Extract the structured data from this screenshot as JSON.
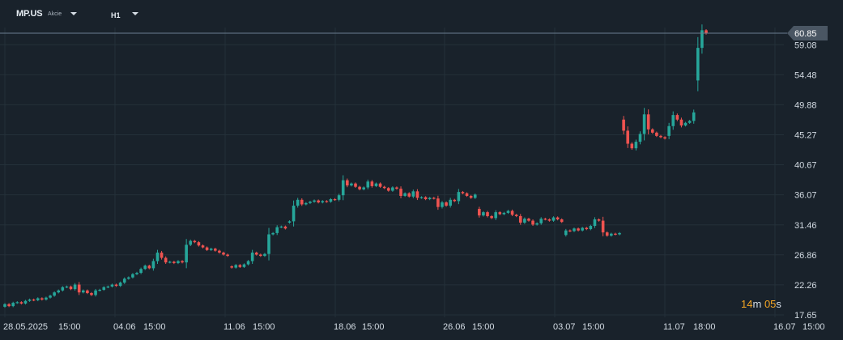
{
  "header": {
    "symbol": "MP.US",
    "instrument_type": "Akcie",
    "timeframe": "H1"
  },
  "countdown": {
    "minutes": "14",
    "minutes_unit": "m",
    "seconds": "05",
    "seconds_unit": "s"
  },
  "colors": {
    "up": "#26a69a",
    "down": "#ef5350",
    "bg": "#19222b",
    "grid": "#243039",
    "text": "#d5dde5",
    "price_line": "#6b7f90",
    "price_tag": "#4a5663",
    "countdown": "#f5a623"
  },
  "chart_data": {
    "type": "candlestick",
    "symbol": "MP.US",
    "timeframe": "H1",
    "y_ticks": [
      17.65,
      22.26,
      26.86,
      31.46,
      36.07,
      40.67,
      45.27,
      49.88,
      54.48,
      59.08
    ],
    "y_tick_labels": [
      "17.65",
      "22.26",
      "26.86",
      "31.46",
      "36.07",
      "40.67",
      "45.27",
      "49.88",
      "54.48",
      "59.08"
    ],
    "ylim": [
      16.9,
      63.1
    ],
    "last_price": 60.85,
    "last_price_label": "60.85",
    "x_labels": [
      "28.05.2025",
      "15:00",
      "04.06",
      "15:00",
      "11.06",
      "15:00",
      "18.06",
      "15:00",
      "26.06",
      "15:00",
      "03.07",
      "15:00",
      "11.07",
      "18:00",
      "16.07",
      "15:00"
    ],
    "candles": [
      [
        18.9,
        19.3
      ],
      [
        19.3,
        19.0
      ],
      [
        19.0,
        19.5
      ],
      [
        19.5,
        19.6
      ],
      [
        19.6,
        19.4
      ],
      [
        19.4,
        19.8
      ],
      [
        19.8,
        20.0
      ],
      [
        20.0,
        19.9
      ],
      [
        19.9,
        20.2
      ],
      [
        20.2,
        20.0
      ],
      [
        20.0,
        20.3
      ],
      [
        20.3,
        20.6
      ],
      [
        20.6,
        21.1
      ],
      [
        21.1,
        21.4
      ],
      [
        21.4,
        21.9
      ],
      [
        21.9,
        22.0
      ],
      [
        22.0,
        21.6
      ],
      [
        21.6,
        22.3
      ],
      [
        22.3,
        21.1
      ],
      [
        21.1,
        21.4
      ],
      [
        21.4,
        21.0
      ],
      [
        21.0,
        20.7
      ],
      [
        20.7,
        21.4
      ],
      [
        21.4,
        21.5
      ],
      [
        21.5,
        21.9
      ],
      [
        21.9,
        22.0
      ],
      [
        22.0,
        22.3
      ],
      [
        22.3,
        22.1
      ],
      [
        22.1,
        22.6
      ],
      [
        22.6,
        23.2
      ],
      [
        23.2,
        23.4
      ],
      [
        23.4,
        23.9
      ],
      [
        23.9,
        24.1
      ],
      [
        24.1,
        24.7
      ],
      [
        24.7,
        25.2
      ],
      [
        25.2,
        24.8
      ],
      [
        24.8,
        25.9
      ],
      [
        25.9,
        27.2
      ],
      [
        27.2,
        26.4
      ],
      [
        26.4,
        25.7
      ],
      [
        25.7,
        25.8
      ],
      [
        25.8,
        25.6
      ],
      [
        25.6,
        25.9
      ],
      [
        25.9,
        25.7
      ],
      [
        25.7,
        28.4
      ],
      [
        28.4,
        29.0
      ],
      [
        29.0,
        28.8
      ],
      [
        28.8,
        28.3
      ],
      [
        28.3,
        28.0
      ],
      [
        28.0,
        27.6
      ],
      [
        27.6,
        27.8
      ],
      [
        27.8,
        27.5
      ],
      [
        27.5,
        27.2
      ],
      [
        27.2,
        26.9
      ],
      [
        26.9,
        26.7
      ],
      [
        25.1,
        24.9
      ],
      [
        24.9,
        25.3
      ],
      [
        25.3,
        25.0
      ],
      [
        25.0,
        25.4
      ],
      [
        25.4,
        25.9
      ],
      [
        25.9,
        27.2
      ],
      [
        27.2,
        26.9
      ],
      [
        26.9,
        26.7
      ],
      [
        26.7,
        27.0
      ],
      [
        27.0,
        30.0
      ],
      [
        30.0,
        30.2
      ],
      [
        30.2,
        31.1
      ],
      [
        31.1,
        31.2
      ],
      [
        31.2,
        30.9
      ],
      [
        31.8,
        32.0
      ],
      [
        32.0,
        34.4
      ],
      [
        34.4,
        35.3
      ],
      [
        35.3,
        34.6
      ],
      [
        34.6,
        34.8
      ],
      [
        34.8,
        35.0
      ],
      [
        35.0,
        35.2
      ],
      [
        35.2,
        34.9
      ],
      [
        34.9,
        35.1
      ],
      [
        35.1,
        35.0
      ],
      [
        35.0,
        35.4
      ],
      [
        35.4,
        35.3
      ],
      [
        35.3,
        36.0
      ],
      [
        36.0,
        38.3
      ],
      [
        38.3,
        37.5
      ],
      [
        37.5,
        37.8
      ],
      [
        37.8,
        37.3
      ],
      [
        37.3,
        36.9
      ],
      [
        36.9,
        37.2
      ],
      [
        37.2,
        38.1
      ],
      [
        38.1,
        37.4
      ],
      [
        37.4,
        37.8
      ],
      [
        37.8,
        37.3
      ],
      [
        37.3,
        37.1
      ],
      [
        37.1,
        36.7
      ],
      [
        36.7,
        37.2
      ],
      [
        37.2,
        37.0
      ],
      [
        37.0,
        35.9
      ],
      [
        35.9,
        36.3
      ],
      [
        36.3,
        35.8
      ],
      [
        35.8,
        36.6
      ],
      [
        36.6,
        35.6
      ],
      [
        35.6,
        35.7
      ],
      [
        35.7,
        35.4
      ],
      [
        35.4,
        35.6
      ],
      [
        35.6,
        35.5
      ],
      [
        35.5,
        34.2
      ],
      [
        34.2,
        34.9
      ],
      [
        34.9,
        34.4
      ],
      [
        34.4,
        35.3
      ],
      [
        35.3,
        35.1
      ],
      [
        35.1,
        36.5
      ],
      [
        36.5,
        36.3
      ],
      [
        36.3,
        35.9
      ],
      [
        35.9,
        35.6
      ],
      [
        35.6,
        36.1
      ],
      [
        33.9,
        32.9
      ],
      [
        32.9,
        33.4
      ],
      [
        33.4,
        32.8
      ],
      [
        32.8,
        32.5
      ],
      [
        32.5,
        33.4
      ],
      [
        33.4,
        33.1
      ],
      [
        33.1,
        33.3
      ],
      [
        33.3,
        33.6
      ],
      [
        33.6,
        33.0
      ],
      [
        33.0,
        32.8
      ],
      [
        32.8,
        31.8
      ],
      [
        31.8,
        32.4
      ],
      [
        32.4,
        32.1
      ],
      [
        32.1,
        31.5
      ],
      [
        31.5,
        31.7
      ],
      [
        31.7,
        32.4
      ],
      [
        32.4,
        32.3
      ],
      [
        32.3,
        32.1
      ],
      [
        32.1,
        32.6
      ],
      [
        32.6,
        32.3
      ],
      [
        32.3,
        31.9
      ],
      [
        29.9,
        30.6
      ],
      [
        30.6,
        30.5
      ],
      [
        30.5,
        30.9
      ],
      [
        30.9,
        30.6
      ],
      [
        30.6,
        31.0
      ],
      [
        31.0,
        30.8
      ],
      [
        30.8,
        31.3
      ],
      [
        31.3,
        32.3
      ],
      [
        32.3,
        32.1
      ],
      [
        32.1,
        30.3
      ],
      [
        30.3,
        29.8
      ],
      [
        29.8,
        30.1
      ],
      [
        30.1,
        30.0
      ],
      [
        30.0,
        30.2
      ],
      [
        47.6,
        45.9
      ],
      [
        45.9,
        43.9
      ],
      [
        43.9,
        43.2
      ],
      [
        43.2,
        44.2
      ],
      [
        44.2,
        45.4
      ],
      [
        45.4,
        48.4
      ],
      [
        48.4,
        46.1
      ],
      [
        46.1,
        45.6
      ],
      [
        45.6,
        45.1
      ],
      [
        45.1,
        44.9
      ],
      [
        44.9,
        44.7
      ],
      [
        45.1,
        46.6
      ],
      [
        46.6,
        48.3
      ],
      [
        48.3,
        47.6
      ],
      [
        47.6,
        46.7
      ],
      [
        46.7,
        47.1
      ],
      [
        47.1,
        47.4
      ],
      [
        47.4,
        48.7
      ],
      [
        53.6,
        58.6
      ],
      [
        58.6,
        61.3
      ],
      [
        61.3,
        60.8
      ]
    ]
  }
}
